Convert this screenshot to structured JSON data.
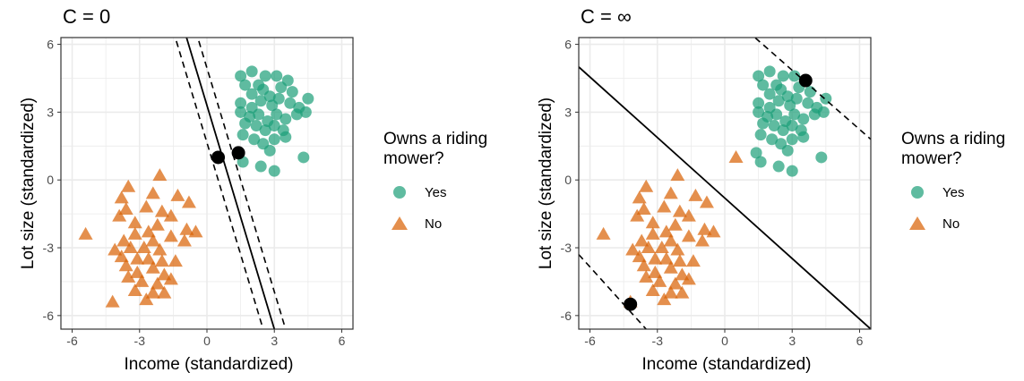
{
  "colors": {
    "yes": "#1b9e77",
    "no": "#d95f02",
    "support": "#000000",
    "grid": "#ebebeb",
    "border": "#333333"
  },
  "legend": {
    "title_line1": "Owns a riding",
    "title_line2": "mower?",
    "yes_label": "Yes",
    "no_label": "No"
  },
  "chart_data": [
    {
      "type": "scatter",
      "title": "C = 0",
      "xlabel": "Income (standardized)",
      "ylabel": "Lot size (standardized)",
      "xlim": [
        -6.5,
        6.5
      ],
      "ylim": [
        -6.6,
        6.3
      ],
      "xticks": [
        -6,
        -3,
        0,
        3,
        6
      ],
      "yticks": [
        -6,
        -3,
        0,
        3,
        6
      ],
      "grid": true,
      "legend_position": "right",
      "series": [
        {
          "name": "Yes",
          "marker": "circle",
          "points": [
            [
              1.5,
              4.6
            ],
            [
              2.0,
              4.8
            ],
            [
              2.3,
              4.2
            ],
            [
              2.6,
              4.6
            ],
            [
              3.1,
              4.6
            ],
            [
              3.6,
              4.4
            ],
            [
              1.7,
              4.2
            ],
            [
              2.0,
              3.8
            ],
            [
              2.5,
              4.0
            ],
            [
              2.8,
              3.7
            ],
            [
              3.3,
              4.1
            ],
            [
              3.8,
              3.9
            ],
            [
              4.5,
              3.6
            ],
            [
              1.5,
              3.4
            ],
            [
              2.0,
              3.2
            ],
            [
              2.4,
              3.5
            ],
            [
              2.9,
              3.3
            ],
            [
              3.2,
              3.6
            ],
            [
              3.7,
              3.4
            ],
            [
              4.1,
              3.2
            ],
            [
              1.5,
              3.0
            ],
            [
              1.9,
              2.8
            ],
            [
              2.3,
              2.9
            ],
            [
              2.7,
              2.6
            ],
            [
              3.1,
              2.9
            ],
            [
              3.5,
              2.7
            ],
            [
              4.0,
              2.9
            ],
            [
              4.4,
              3.0
            ],
            [
              1.7,
              2.5
            ],
            [
              2.2,
              2.4
            ],
            [
              2.6,
              2.2
            ],
            [
              3.0,
              2.4
            ],
            [
              3.4,
              2.2
            ],
            [
              1.6,
              2.0
            ],
            [
              2.1,
              1.8
            ],
            [
              2.5,
              1.6
            ],
            [
              3.0,
              1.8
            ],
            [
              3.5,
              1.9
            ],
            [
              2.8,
              1.3
            ],
            [
              1.4,
              1.2
            ],
            [
              2.4,
              0.6
            ],
            [
              3.0,
              0.4
            ],
            [
              1.6,
              0.8
            ],
            [
              4.3,
              1.0
            ]
          ]
        },
        {
          "name": "No",
          "marker": "triangle",
          "points": [
            [
              -2.1,
              0.2
            ],
            [
              -3.5,
              -0.3
            ],
            [
              -2.4,
              -0.6
            ],
            [
              -3.8,
              -0.8
            ],
            [
              -1.3,
              -0.7
            ],
            [
              -0.8,
              -1.0
            ],
            [
              -3.6,
              -1.3
            ],
            [
              -2.7,
              -1.2
            ],
            [
              -2.0,
              -1.4
            ],
            [
              -1.6,
              -1.6
            ],
            [
              -3.9,
              -1.6
            ],
            [
              -3.2,
              -1.9
            ],
            [
              -2.2,
              -2.0
            ],
            [
              -2.6,
              -2.3
            ],
            [
              -3.7,
              -2.7
            ],
            [
              -3.2,
              -2.4
            ],
            [
              -2.4,
              -2.7
            ],
            [
              -1.6,
              -2.5
            ],
            [
              -2.8,
              -3.0
            ],
            [
              -3.4,
              -3.0
            ],
            [
              -2.1,
              -3.1
            ],
            [
              -3.8,
              -3.4
            ],
            [
              -3.1,
              -3.5
            ],
            [
              -2.6,
              -3.5
            ],
            [
              -2.0,
              -3.6
            ],
            [
              -1.4,
              -3.6
            ],
            [
              -3.6,
              -3.8
            ],
            [
              -3.1,
              -4.1
            ],
            [
              -2.4,
              -3.9
            ],
            [
              -1.9,
              -4.2
            ],
            [
              -3.5,
              -4.3
            ],
            [
              -2.9,
              -4.5
            ],
            [
              -2.2,
              -4.6
            ],
            [
              -1.6,
              -4.4
            ],
            [
              -3.2,
              -4.9
            ],
            [
              -2.4,
              -5.0
            ],
            [
              -2.7,
              -5.3
            ],
            [
              -1.9,
              -5.0
            ],
            [
              -4.2,
              -5.4
            ],
            [
              -5.4,
              -2.4
            ],
            [
              -1.0,
              -2.7
            ],
            [
              -0.9,
              -2.2
            ],
            [
              -0.5,
              -2.3
            ],
            [
              -4.1,
              -3.1
            ]
          ]
        }
      ],
      "support_vectors": [
        [
          0.5,
          1.0
        ],
        [
          1.4,
          1.2
        ]
      ],
      "boundary": [
        [
          -1.0,
          6.6
        ],
        [
          3.0,
          -6.6
        ]
      ],
      "margin_lines": [
        [
          [
            -1.5,
            6.6
          ],
          [
            2.5,
            -6.6
          ]
        ],
        [
          [
            -0.5,
            6.6
          ],
          [
            3.5,
            -6.6
          ]
        ]
      ]
    },
    {
      "type": "scatter",
      "title": "C = ∞",
      "xlabel": "Income (standardized)",
      "ylabel": "Lot size (standardized)",
      "xlim": [
        -6.5,
        6.5
      ],
      "ylim": [
        -6.6,
        6.3
      ],
      "xticks": [
        -6,
        -3,
        0,
        3,
        6
      ],
      "yticks": [
        -6,
        -3,
        0,
        3,
        6
      ],
      "grid": true,
      "legend_position": "right",
      "series": [
        {
          "name": "Yes",
          "marker": "circle",
          "points": [
            [
              1.5,
              4.6
            ],
            [
              2.0,
              4.8
            ],
            [
              2.3,
              4.2
            ],
            [
              2.6,
              4.6
            ],
            [
              3.1,
              4.6
            ],
            [
              3.6,
              4.4
            ],
            [
              1.7,
              4.2
            ],
            [
              2.0,
              3.8
            ],
            [
              2.5,
              4.0
            ],
            [
              2.8,
              3.7
            ],
            [
              3.3,
              4.1
            ],
            [
              3.8,
              3.9
            ],
            [
              4.5,
              3.6
            ],
            [
              1.5,
              3.4
            ],
            [
              2.0,
              3.2
            ],
            [
              2.4,
              3.5
            ],
            [
              2.9,
              3.3
            ],
            [
              3.2,
              3.6
            ],
            [
              3.7,
              3.4
            ],
            [
              4.1,
              3.2
            ],
            [
              1.5,
              3.0
            ],
            [
              1.9,
              2.8
            ],
            [
              2.3,
              2.9
            ],
            [
              2.7,
              2.6
            ],
            [
              3.1,
              2.9
            ],
            [
              3.5,
              2.7
            ],
            [
              4.0,
              2.9
            ],
            [
              4.4,
              3.0
            ],
            [
              1.7,
              2.5
            ],
            [
              2.2,
              2.4
            ],
            [
              2.6,
              2.2
            ],
            [
              3.0,
              2.4
            ],
            [
              3.4,
              2.2
            ],
            [
              1.6,
              2.0
            ],
            [
              2.1,
              1.8
            ],
            [
              2.5,
              1.6
            ],
            [
              3.0,
              1.8
            ],
            [
              3.5,
              1.9
            ],
            [
              2.8,
              1.3
            ],
            [
              1.4,
              1.2
            ],
            [
              2.4,
              0.6
            ],
            [
              3.0,
              0.4
            ],
            [
              1.6,
              0.8
            ],
            [
              4.3,
              1.0
            ]
          ]
        },
        {
          "name": "No",
          "marker": "triangle",
          "points": [
            [
              -2.1,
              0.2
            ],
            [
              -3.5,
              -0.3
            ],
            [
              -2.4,
              -0.6
            ],
            [
              -3.8,
              -0.8
            ],
            [
              -1.3,
              -0.7
            ],
            [
              -0.8,
              -1.0
            ],
            [
              -3.6,
              -1.3
            ],
            [
              -2.7,
              -1.2
            ],
            [
              -2.0,
              -1.4
            ],
            [
              -1.6,
              -1.6
            ],
            [
              -3.9,
              -1.6
            ],
            [
              -3.2,
              -1.9
            ],
            [
              -2.2,
              -2.0
            ],
            [
              -2.6,
              -2.3
            ],
            [
              -3.7,
              -2.7
            ],
            [
              -3.2,
              -2.4
            ],
            [
              -2.4,
              -2.7
            ],
            [
              -1.6,
              -2.5
            ],
            [
              -2.8,
              -3.0
            ],
            [
              -3.4,
              -3.0
            ],
            [
              -2.1,
              -3.1
            ],
            [
              -3.8,
              -3.4
            ],
            [
              -3.1,
              -3.5
            ],
            [
              -2.6,
              -3.5
            ],
            [
              -2.0,
              -3.6
            ],
            [
              -1.4,
              -3.6
            ],
            [
              -3.6,
              -3.8
            ],
            [
              -3.1,
              -4.1
            ],
            [
              -2.4,
              -3.9
            ],
            [
              -1.9,
              -4.2
            ],
            [
              -3.5,
              -4.3
            ],
            [
              -2.9,
              -4.5
            ],
            [
              -2.2,
              -4.6
            ],
            [
              -1.6,
              -4.4
            ],
            [
              -3.2,
              -4.9
            ],
            [
              -2.4,
              -5.0
            ],
            [
              -2.7,
              -5.3
            ],
            [
              -1.9,
              -5.0
            ],
            [
              -4.2,
              -5.4
            ],
            [
              -5.4,
              -2.4
            ],
            [
              -1.0,
              -2.7
            ],
            [
              -0.9,
              -2.2
            ],
            [
              -0.5,
              -2.3
            ],
            [
              -4.1,
              -3.1
            ],
            [
              0.5,
              1.0
            ]
          ]
        }
      ],
      "support_vectors": [
        [
          3.6,
          4.4
        ],
        [
          -4.2,
          -5.5
        ]
      ],
      "boundary": [
        [
          -6.5,
          5.0
        ],
        [
          6.5,
          -6.6
        ]
      ],
      "margin_lines": [
        [
          [
            1.0,
            6.6
          ],
          [
            6.5,
            1.8
          ]
        ],
        [
          [
            -6.5,
            -3.3
          ],
          [
            -3.5,
            -6.6
          ]
        ]
      ]
    }
  ]
}
